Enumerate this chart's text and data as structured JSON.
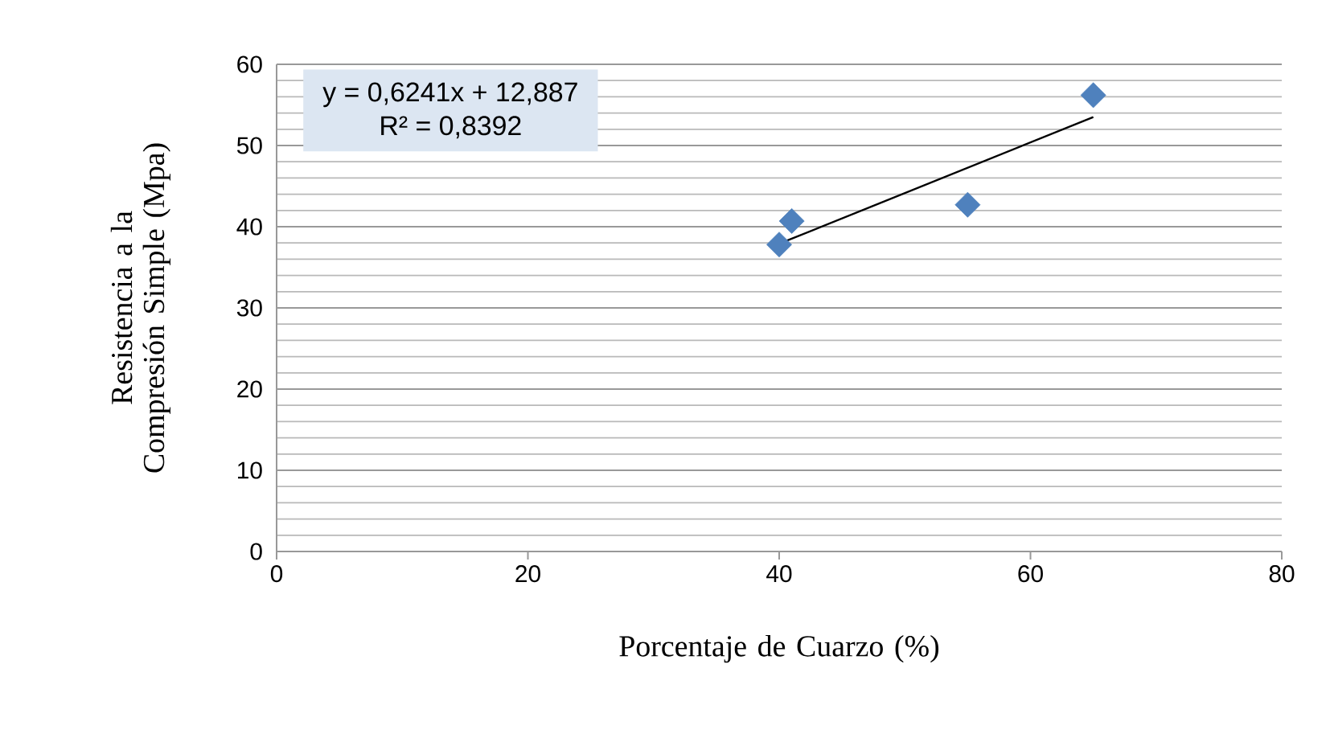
{
  "chart_data": {
    "type": "scatter",
    "xlabel": "Porcentaje de Cuarzo (%)",
    "ylabel": "Resistencia a la Compresión Simple (Mpa)",
    "xlim": [
      0,
      80
    ],
    "xticks": [
      0,
      20,
      40,
      60,
      80
    ],
    "ylim": [
      0,
      60
    ],
    "yticks": [
      0,
      10,
      20,
      30,
      40,
      50,
      60
    ],
    "grid": "y",
    "marker": "diamond",
    "annotations": [
      "y = 0,6241x + 12,887",
      "R² = 0,8392"
    ],
    "series": [
      {
        "color": "#4f81bd",
        "x": [
          40,
          41,
          55,
          65
        ],
        "values": [
          37.8,
          40.7,
          42.7,
          56.2
        ]
      },
      {
        "type": "line",
        "color": "#000000",
        "marker": "none",
        "line_style": "solid",
        "x": [
          40,
          65
        ],
        "values": [
          37.9,
          53.5
        ]
      }
    ]
  }
}
